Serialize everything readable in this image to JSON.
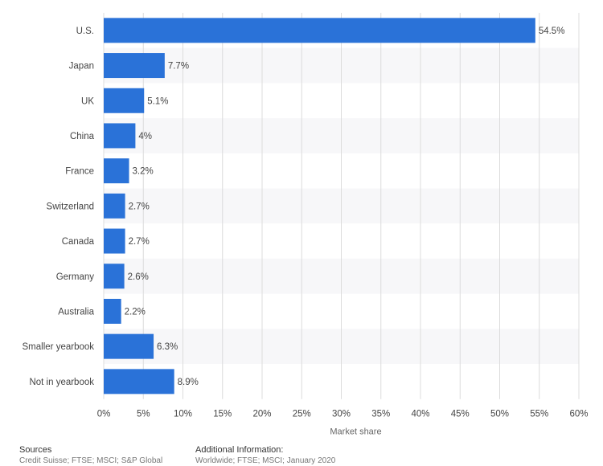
{
  "chart_data": {
    "type": "bar",
    "orientation": "horizontal",
    "categories": [
      "U.S.",
      "Japan",
      "UK",
      "China",
      "France",
      "Switzerland",
      "Canada",
      "Germany",
      "Australia",
      "Smaller yearbook",
      "Not in yearbook"
    ],
    "values": [
      54.5,
      7.7,
      5.1,
      4,
      3.2,
      2.7,
      2.7,
      2.6,
      2.2,
      6.3,
      8.9
    ],
    "value_labels": [
      "54.5%",
      "7.7%",
      "5.1%",
      "4%",
      "3.2%",
      "2.7%",
      "2.7%",
      "2.6%",
      "2.2%",
      "6.3%",
      "8.9%"
    ],
    "xlabel": "Market share",
    "ylabel": "",
    "xlim": [
      0,
      60
    ],
    "x_ticks": [
      0,
      5,
      10,
      15,
      20,
      25,
      30,
      35,
      40,
      45,
      50,
      55,
      60
    ],
    "x_tick_labels": [
      "0%",
      "5%",
      "10%",
      "15%",
      "20%",
      "25%",
      "30%",
      "35%",
      "40%",
      "45%",
      "50%",
      "55%",
      "60%"
    ],
    "grid": true,
    "bar_color": "#2a72d8",
    "stripe_color": "#f7f7f9"
  },
  "footer": {
    "sources_title": "Sources",
    "sources_text": "Credit Suisse; FTSE; MSCI; S&P Global",
    "info_title": "Additional Information:",
    "info_text": "Worldwide; FTSE; MSCI; January 2020"
  }
}
